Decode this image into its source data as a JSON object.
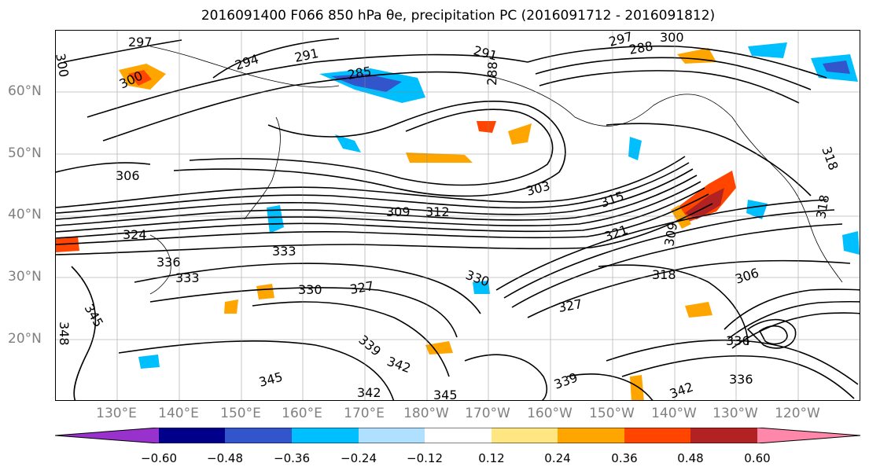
{
  "title": "2016091400 F066 850 hPa θe, precipitation PC (2016091712 - 2016091812)",
  "lat_ticks": [
    "60°N",
    "50°N",
    "40°N",
    "30°N",
    "20°N"
  ],
  "lon_ticks": [
    "130°E",
    "140°E",
    "150°E",
    "160°E",
    "170°E",
    "180°W",
    "170°W",
    "160°W",
    "150°W",
    "140°W",
    "130°W",
    "120°W"
  ],
  "colorbar": {
    "colors": [
      "#9932cc",
      "#00008b",
      "#3355cc",
      "#00bfff",
      "#b0e0ff",
      "#ffffff",
      "#ffe680",
      "#ffa500",
      "#ff4500",
      "#b22222",
      "#ff88aa"
    ],
    "labels": [
      "−0.60",
      "−0.48",
      "−0.36",
      "−0.24",
      "−0.12",
      "0.12",
      "0.24",
      "0.36",
      "0.48",
      "0.60"
    ]
  },
  "contour_labels": [
    "297",
    "294",
    "291",
    "285",
    "300",
    "291",
    "288",
    "297",
    "300",
    "288",
    "300",
    "306",
    "303",
    "309",
    "312",
    "315",
    "321",
    "309",
    "324",
    "333",
    "336",
    "333",
    "330",
    "327",
    "330",
    "318",
    "306",
    "327",
    "345",
    "339",
    "342",
    "345",
    "342",
    "345",
    "339",
    "336",
    "336",
    "342",
    "318",
    "318",
    "348"
  ]
}
